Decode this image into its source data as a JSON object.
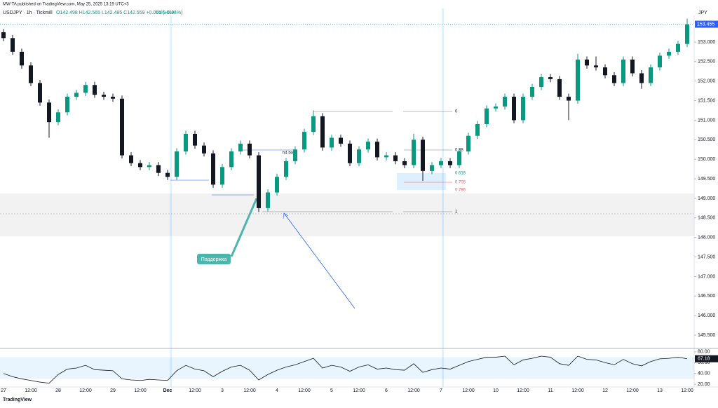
{
  "chart_data": {
    "type": "candlestick",
    "publisher": "MW-TA published on TradingView.com, May 25, 2025 13:19 UTC+3",
    "title": "USDJPY · 1h · Tickmill",
    "ohlc_text": "O142.498 H142.565 L142.485 C142.559 +0.061 (+0.04%)",
    "volume_text": "Vol6.01K",
    "currency": "JPY",
    "footer": "TradingView",
    "up_color": "#089981",
    "down_color": "#131722",
    "ylim": [
      145.16,
      153.68
    ],
    "yticks": [
      {
        "value": 145.5,
        "label": "145.500"
      },
      {
        "value": 146,
        "label": "146.000"
      },
      {
        "value": 146.5,
        "label": "146.500"
      },
      {
        "value": 147,
        "label": "147.000"
      },
      {
        "value": 147.5,
        "label": "147.500"
      },
      {
        "value": 148,
        "label": "148.000"
      },
      {
        "value": 148.5,
        "label": "148.500"
      },
      {
        "value": 149,
        "label": "149.000"
      },
      {
        "value": 149.5,
        "label": "149.500"
      },
      {
        "value": 150,
        "label": "150.000"
      },
      {
        "value": 150.5,
        "label": "150.500"
      },
      {
        "value": 151,
        "label": "151.000"
      },
      {
        "value": 151.5,
        "label": "151.500"
      },
      {
        "value": 152,
        "label": "152.000"
      },
      {
        "value": 152.5,
        "label": "152.500"
      },
      {
        "value": 153,
        "label": "153.000"
      }
    ],
    "last_price": {
      "value": 153.455,
      "label": "153.455"
    },
    "categories": [
      "27",
      null,
      null,
      "12:00",
      null,
      null,
      "28",
      null,
      null,
      "12:00",
      null,
      null,
      "29",
      null,
      null,
      "12:00",
      null,
      null,
      "Dec",
      null,
      null,
      "12:00",
      null,
      null,
      "3",
      null,
      null,
      "12:00",
      null,
      null,
      "4",
      null,
      null,
      "12:00",
      null,
      null,
      "5",
      null,
      null,
      "12:00",
      null,
      null,
      "6",
      null,
      null,
      "12:00",
      null,
      null,
      "7",
      null,
      null,
      "12:00",
      null,
      null,
      "10",
      null,
      null,
      "12:00",
      null,
      null,
      "11",
      null,
      null,
      "12:00",
      null,
      null,
      "12",
      null,
      null,
      "12:00",
      null,
      null,
      "13",
      null,
      null,
      "12:00"
    ],
    "candles": [
      [
        153.25,
        153.33,
        153.02,
        153.1
      ],
      [
        153.1,
        153.18,
        152.67,
        152.75
      ],
      [
        152.75,
        152.83,
        152.32,
        152.4
      ],
      [
        152.4,
        152.48,
        151.87,
        151.95
      ],
      [
        151.95,
        152.03,
        151.37,
        151.45
      ],
      [
        151.45,
        151.53,
        150.55,
        150.95
      ],
      [
        150.95,
        151.28,
        150.87,
        151.2
      ],
      [
        151.2,
        151.68,
        151.12,
        151.6
      ],
      [
        151.6,
        151.78,
        151.52,
        151.7
      ],
      [
        151.7,
        151.98,
        151.62,
        151.9
      ],
      [
        151.9,
        151.98,
        151.57,
        151.65
      ],
      [
        151.65,
        151.73,
        151.52,
        151.6
      ],
      [
        151.6,
        151.68,
        151.47,
        151.55
      ],
      [
        151.55,
        151.63,
        150.02,
        150.1
      ],
      [
        150.1,
        150.18,
        149.82,
        149.9
      ],
      [
        149.9,
        149.98,
        149.72,
        149.8
      ],
      [
        149.8,
        149.93,
        149.72,
        149.85
      ],
      [
        149.85,
        149.93,
        149.57,
        149.65
      ],
      [
        149.65,
        149.73,
        149.47,
        149.55
      ],
      [
        149.55,
        150.28,
        149.47,
        150.2
      ],
      [
        150.2,
        150.73,
        150.12,
        150.65
      ],
      [
        150.65,
        150.73,
        150.27,
        150.35
      ],
      [
        150.35,
        150.43,
        150.07,
        150.15
      ],
      [
        150.15,
        150.23,
        149.27,
        149.35
      ],
      [
        149.35,
        149.88,
        149.27,
        149.8
      ],
      [
        149.8,
        150.28,
        149.72,
        150.2
      ],
      [
        150.2,
        150.48,
        150.12,
        150.4
      ],
      [
        150.4,
        150.48,
        150.02,
        150.1
      ],
      [
        150.1,
        150.18,
        148.65,
        148.75
      ],
      [
        148.75,
        149.23,
        148.67,
        149.15
      ],
      [
        149.15,
        149.63,
        149.07,
        149.55
      ],
      [
        149.55,
        150.03,
        149.47,
        149.95
      ],
      [
        149.95,
        150.33,
        149.87,
        150.25
      ],
      [
        150.25,
        150.78,
        150.17,
        150.7
      ],
      [
        150.7,
        151.25,
        150.62,
        151.1
      ],
      [
        151.1,
        151.18,
        150.22,
        150.3
      ],
      [
        150.3,
        150.63,
        150.22,
        150.55
      ],
      [
        150.55,
        150.63,
        150.32,
        150.4
      ],
      [
        150.4,
        150.48,
        149.82,
        149.9
      ],
      [
        149.9,
        150.33,
        149.82,
        150.25
      ],
      [
        150.25,
        150.53,
        150.17,
        150.45
      ],
      [
        150.45,
        150.53,
        149.97,
        150.05
      ],
      [
        150.05,
        150.18,
        149.97,
        150.1
      ],
      [
        150.1,
        150.18,
        149.87,
        149.95
      ],
      [
        149.95,
        150.03,
        149.77,
        149.85
      ],
      [
        149.85,
        150.65,
        149.77,
        150.5
      ],
      [
        150.5,
        150.58,
        149.45,
        149.7
      ],
      [
        149.7,
        149.93,
        149.62,
        149.85
      ],
      [
        149.85,
        150.03,
        149.77,
        149.95
      ],
      [
        149.95,
        150.03,
        149.77,
        149.85
      ],
      [
        149.85,
        150.28,
        149.77,
        150.2
      ],
      [
        150.2,
        150.68,
        150.12,
        150.6
      ],
      [
        150.6,
        150.98,
        150.52,
        150.9
      ],
      [
        150.9,
        151.38,
        150.82,
        151.3
      ],
      [
        151.3,
        151.43,
        151.22,
        151.35
      ],
      [
        151.35,
        151.68,
        151.27,
        151.6
      ],
      [
        151.6,
        151.68,
        150.92,
        151.0
      ],
      [
        151.0,
        151.68,
        150.92,
        151.6
      ],
      [
        151.6,
        151.93,
        151.52,
        151.85
      ],
      [
        151.85,
        152.18,
        151.77,
        152.1
      ],
      [
        152.1,
        152.18,
        151.97,
        152.05
      ],
      [
        152.05,
        152.13,
        151.52,
        151.6
      ],
      [
        151.6,
        151.68,
        151.0,
        151.5
      ],
      [
        151.5,
        152.7,
        151.42,
        152.55
      ],
      [
        152.55,
        152.63,
        152.32,
        152.4
      ],
      [
        152.4,
        152.63,
        152.27,
        152.35
      ],
      [
        152.35,
        152.43,
        152.07,
        152.15
      ],
      [
        152.15,
        152.23,
        151.87,
        151.95
      ],
      [
        151.95,
        152.63,
        151.87,
        152.55
      ],
      [
        152.55,
        152.63,
        152.12,
        152.2
      ],
      [
        152.2,
        152.28,
        151.8,
        151.95
      ],
      [
        151.95,
        152.43,
        151.87,
        152.35
      ],
      [
        152.35,
        152.73,
        152.27,
        152.65
      ],
      [
        152.65,
        152.83,
        152.57,
        152.75
      ],
      [
        152.75,
        153.03,
        152.67,
        152.95
      ],
      [
        152.95,
        153.6,
        152.87,
        153.45
      ]
    ],
    "annotations": [
      "h4 bos",
      "Поддержка"
    ],
    "fib_levels": [
      0,
      0.38,
      0.618,
      0.705,
      0.786,
      1
    ],
    "rsi": {
      "color": "#131722",
      "ylim": [
        15,
        85
      ],
      "yticks": [
        {
          "value": 80,
          "label": "80.00"
        },
        {
          "value": 60,
          "label": "60.00"
        },
        {
          "value": 40,
          "label": "40.00"
        },
        {
          "value": 20,
          "label": "20.00"
        }
      ],
      "band": [
        30,
        70
      ],
      "last": 67.18,
      "values": [
        40,
        34,
        30,
        27,
        24,
        22,
        38,
        48,
        50,
        55,
        47,
        46,
        45,
        30,
        28,
        27,
        29,
        28,
        27,
        45,
        55,
        48,
        45,
        34,
        44,
        52,
        55,
        46,
        28,
        38,
        46,
        52,
        56,
        62,
        68,
        50,
        55,
        52,
        44,
        52,
        56,
        48,
        50,
        47,
        46,
        58,
        42,
        47,
        50,
        48,
        55,
        62,
        66,
        70,
        70,
        72,
        56,
        65,
        68,
        72,
        70,
        58,
        55,
        72,
        66,
        65,
        60,
        56,
        66,
        58,
        54,
        62,
        67,
        68,
        70,
        67.18
      ]
    }
  }
}
